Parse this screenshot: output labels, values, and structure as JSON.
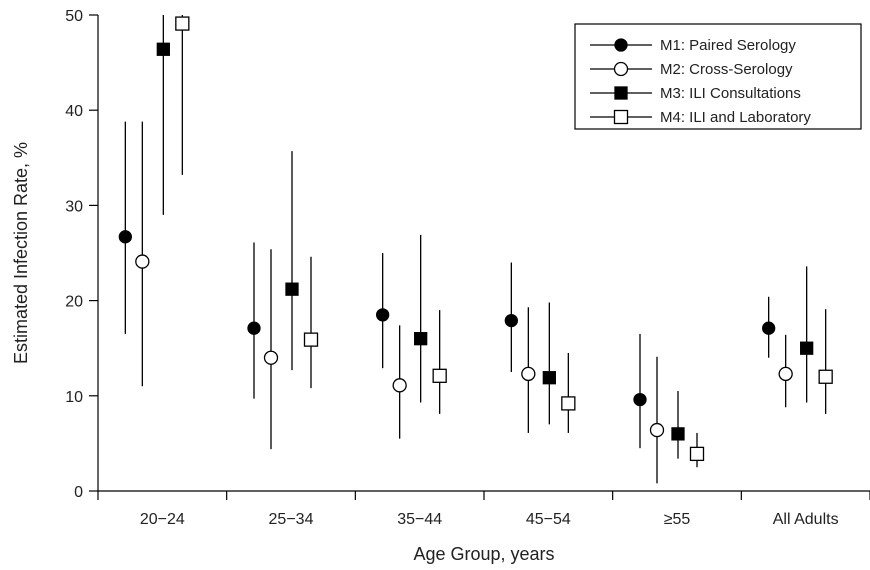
{
  "chart_data": {
    "type": "scatter",
    "title": "",
    "xlabel": "Age Group, years",
    "ylabel": "Estimated Infection Rate, %",
    "ylim": [
      0,
      50
    ],
    "yticks": [
      "0",
      "10",
      "20",
      "30",
      "40",
      "50"
    ],
    "categories": [
      "20−24",
      "25−34",
      "35−44",
      "45−54",
      "≥55",
      "All Adults"
    ],
    "legend_position": "top-right",
    "grid": false,
    "series": [
      {
        "name": "M1: Paired Serology",
        "marker": "filled-circle",
        "values": [
          26.7,
          17.1,
          18.5,
          17.9,
          9.6,
          17.1
        ],
        "lower": [
          16.5,
          9.7,
          12.9,
          12.5,
          4.5,
          14.0
        ],
        "upper": [
          38.8,
          26.1,
          25.0,
          24.0,
          16.5,
          20.4
        ]
      },
      {
        "name": "M2: Cross-Serology",
        "marker": "open-circle",
        "values": [
          24.1,
          14.0,
          11.1,
          12.3,
          6.4,
          12.3
        ],
        "lower": [
          11.0,
          4.4,
          5.5,
          6.1,
          0.8,
          8.8
        ],
        "upper": [
          38.8,
          25.4,
          17.4,
          19.3,
          14.1,
          16.4
        ]
      },
      {
        "name": "M3: ILI Consultations",
        "marker": "filled-square",
        "values": [
          46.4,
          21.2,
          16.0,
          11.9,
          6.0,
          15.0
        ],
        "lower": [
          29.0,
          12.7,
          9.3,
          7.0,
          3.4,
          9.3
        ],
        "upper": [
          50.0,
          35.7,
          26.9,
          19.8,
          10.5,
          23.6
        ]
      },
      {
        "name": "M4: ILI and Laboratory",
        "marker": "open-square",
        "values": [
          49.1,
          15.9,
          12.1,
          9.2,
          3.9,
          12.0
        ],
        "lower": [
          33.2,
          10.8,
          8.1,
          6.1,
          2.5,
          8.1
        ],
        "upper": [
          50.0,
          24.6,
          19.0,
          14.5,
          6.1,
          19.1
        ]
      }
    ]
  }
}
